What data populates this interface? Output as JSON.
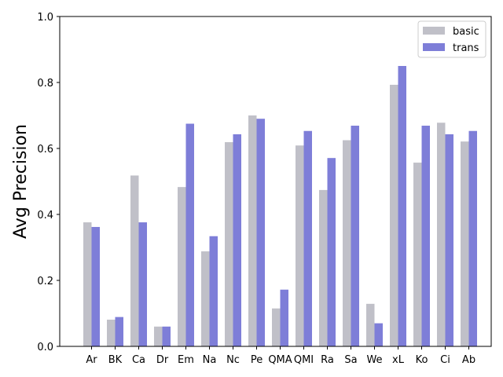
{
  "chart_data": {
    "type": "bar",
    "title": "",
    "xlabel": "",
    "ylabel": "Avg Precision",
    "ylim": [
      0,
      1.0
    ],
    "yticks": [
      "0.0",
      "0.2",
      "0.4",
      "0.6",
      "0.8",
      "1.0"
    ],
    "grid": false,
    "legend": "top-right",
    "categories": [
      "Ar",
      "BK",
      "Ca",
      "Dr",
      "Em",
      "Na",
      "Nc",
      "Pe",
      "QMA",
      "QMI",
      "Ra",
      "Sa",
      "We",
      "xL",
      "Ko",
      "Ci",
      "Ab"
    ],
    "series": [
      {
        "name": "basic",
        "color": "#c0c0c8",
        "values": [
          0.376,
          0.081,
          0.518,
          0.06,
          0.483,
          0.288,
          0.619,
          0.7,
          0.115,
          0.609,
          0.474,
          0.625,
          0.129,
          0.793,
          0.557,
          0.678,
          0.621
        ]
      },
      {
        "name": "trans",
        "color": "#7e7ed8",
        "values": [
          0.362,
          0.089,
          0.376,
          0.06,
          0.675,
          0.334,
          0.643,
          0.69,
          0.172,
          0.653,
          0.571,
          0.669,
          0.07,
          0.85,
          0.669,
          0.643,
          0.653
        ]
      }
    ]
  }
}
